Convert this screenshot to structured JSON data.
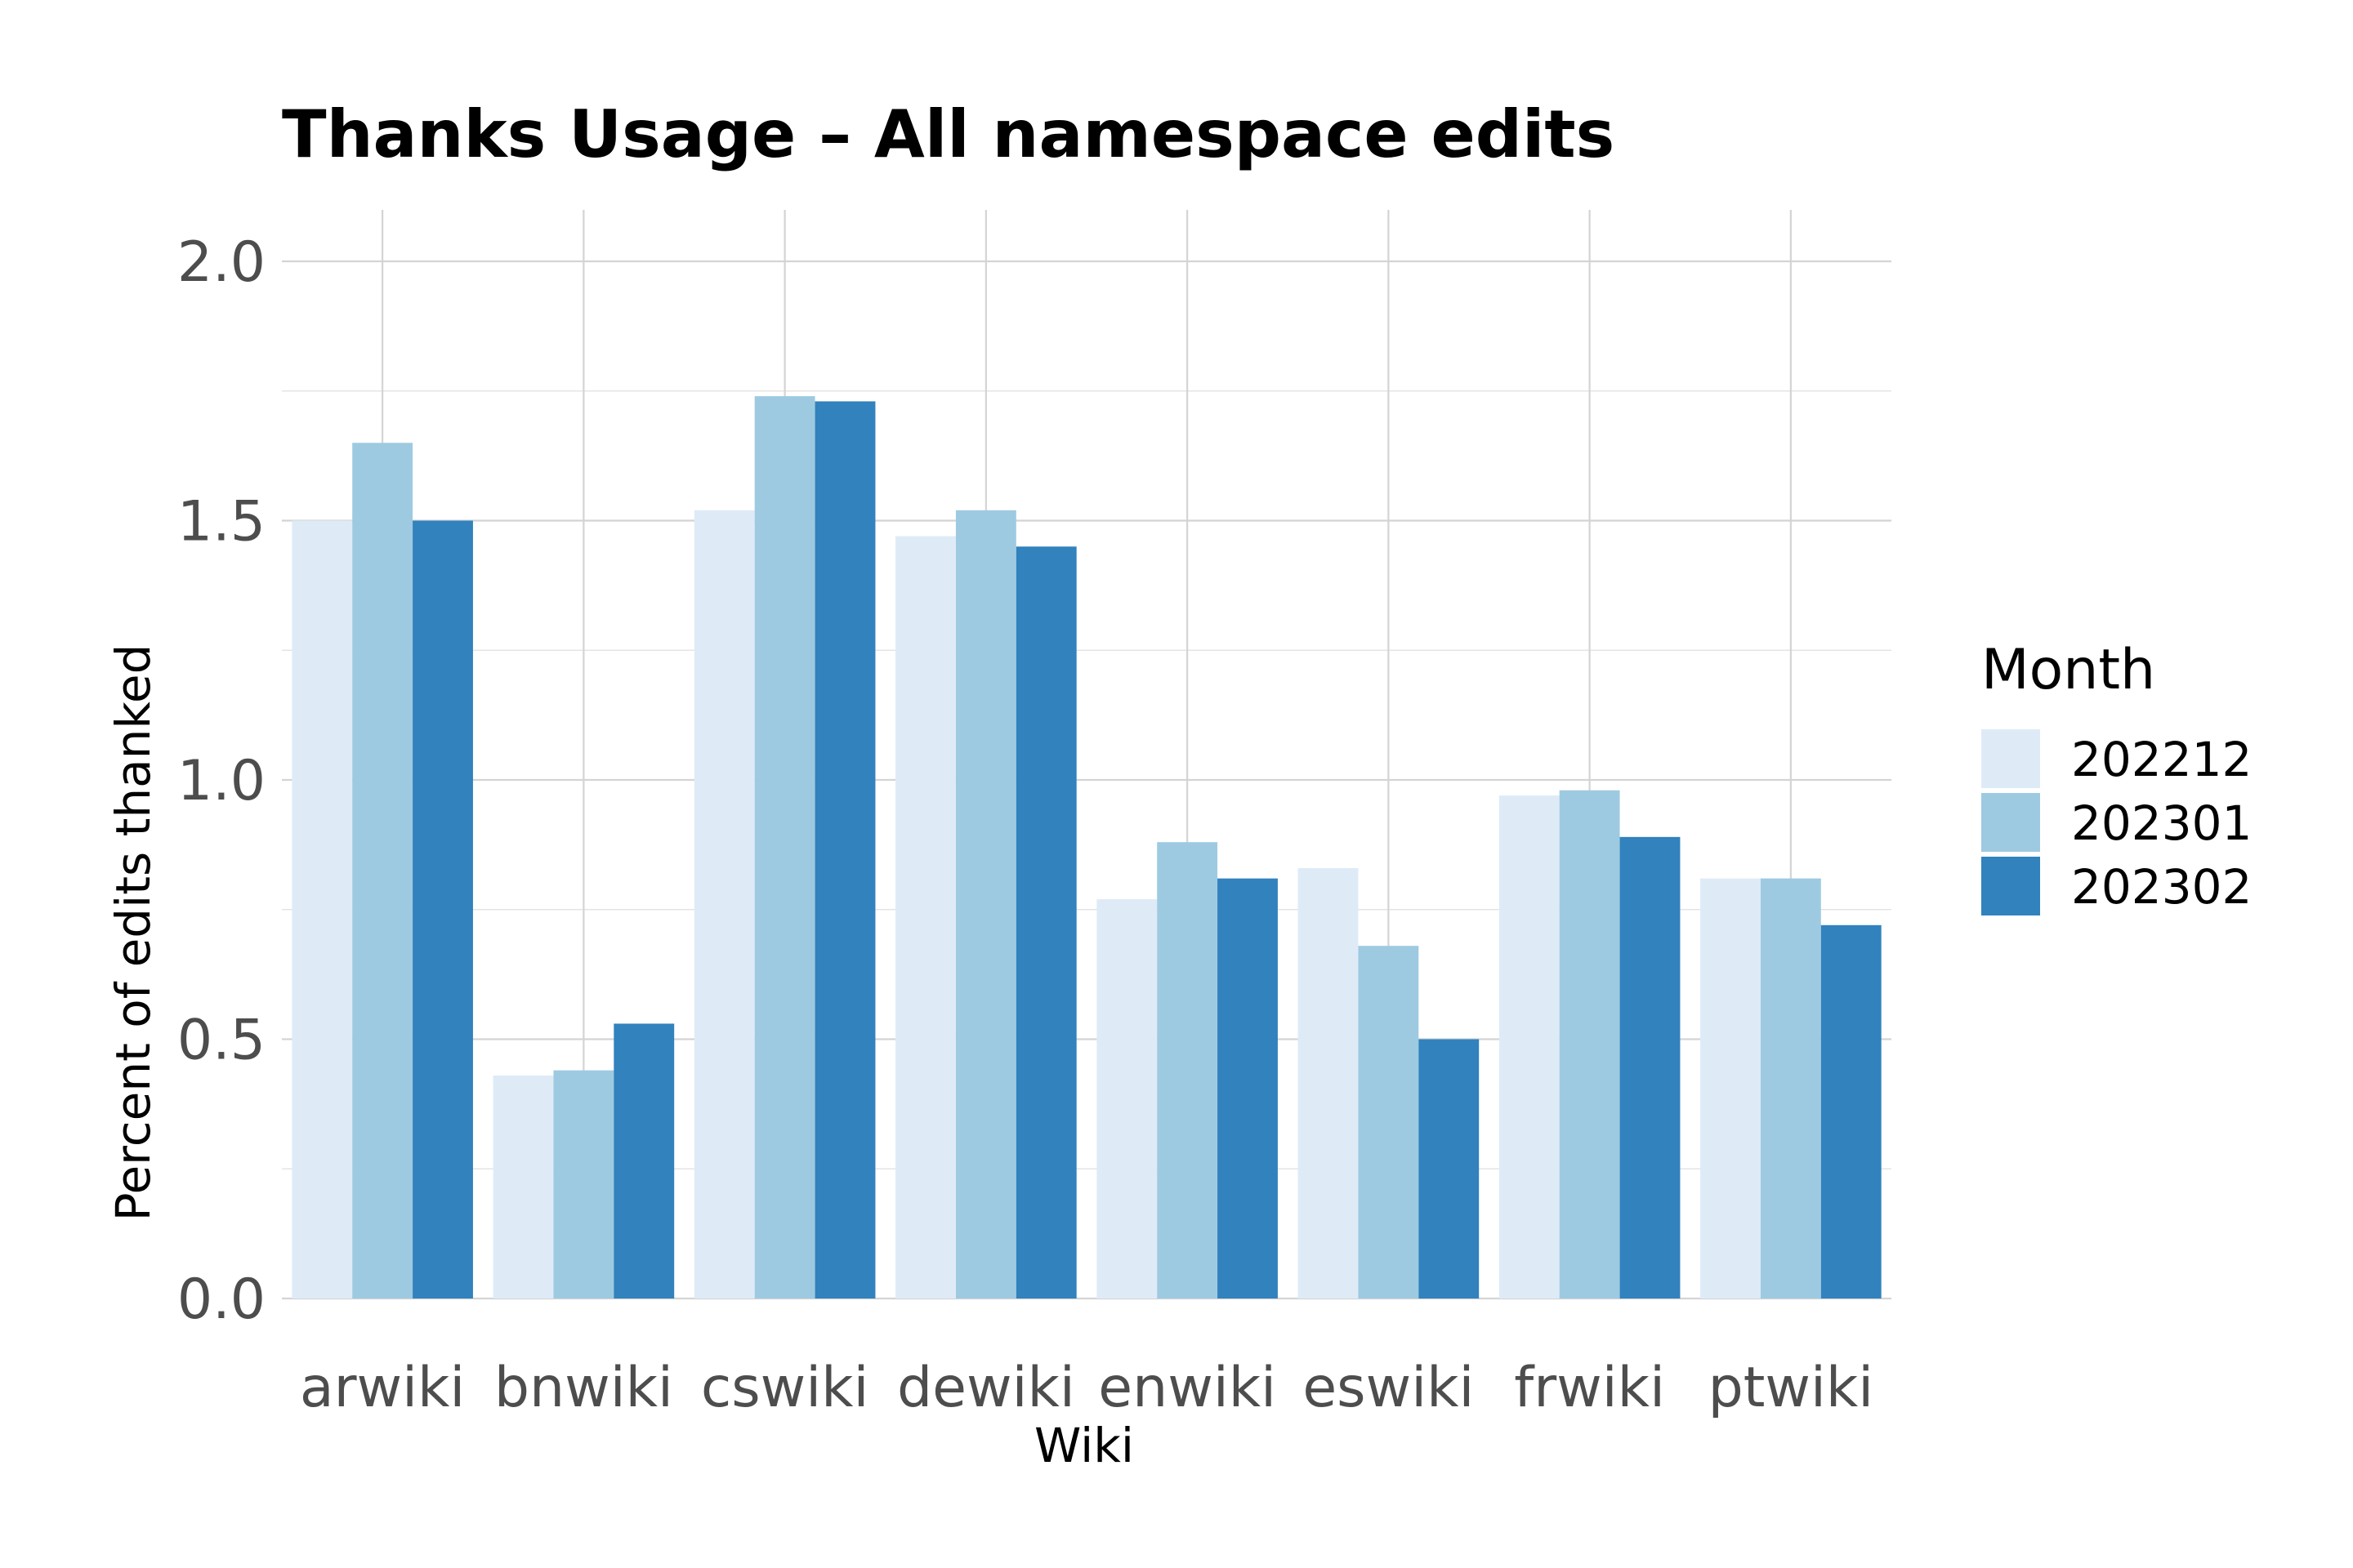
{
  "chart_data": {
    "type": "bar",
    "title": "Thanks Usage – All namespace edits",
    "xlabel": "Wiki",
    "ylabel": "Percent of edits thanked",
    "categories": [
      "arwiki",
      "bnwiki",
      "cswiki",
      "dewiki",
      "enwiki",
      "eswiki",
      "frwiki",
      "ptwiki"
    ],
    "series": [
      {
        "name": "202212",
        "color": "#deebf7",
        "values": [
          1.5,
          0.43,
          1.52,
          1.47,
          0.77,
          0.83,
          0.97,
          0.81
        ]
      },
      {
        "name": "202301",
        "color": "#9ecae1",
        "values": [
          1.65,
          0.44,
          1.74,
          1.52,
          0.88,
          0.68,
          0.98,
          0.81
        ]
      },
      {
        "name": "202302",
        "color": "#3182bd",
        "values": [
          1.5,
          0.53,
          1.73,
          1.45,
          0.81,
          0.5,
          0.89,
          0.72
        ]
      }
    ],
    "ylim": [
      0,
      2.1
    ],
    "yticks": [
      0.0,
      0.5,
      1.0,
      1.5,
      2.0
    ],
    "ytick_labels": [
      "0.0",
      "0.5",
      "1.0",
      "1.5",
      "2.0"
    ],
    "grid": true,
    "legend": {
      "title": "Month",
      "position": "right"
    }
  }
}
